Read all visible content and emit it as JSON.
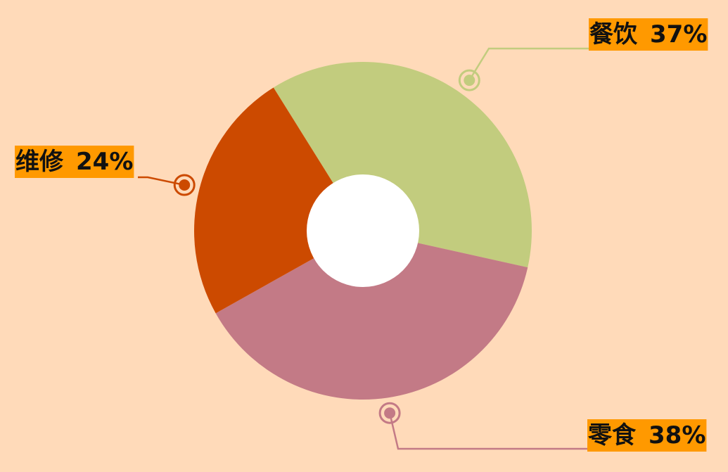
{
  "chart_data": {
    "type": "pie",
    "style": "donut",
    "title": "",
    "slices": [
      {
        "label": "餐饮",
        "value": 37,
        "percent_text": "37%",
        "color": "#C2CC7E"
      },
      {
        "label": "零食",
        "value": 38,
        "percent_text": "38%",
        "color": "#C37A86"
      },
      {
        "label": "维修",
        "value": 24,
        "percent_text": "24%",
        "color": "#CC4A00"
      }
    ],
    "label_background": "#FF9900",
    "background": "#FFDAB9",
    "hole_color": "#FFFFFF"
  }
}
